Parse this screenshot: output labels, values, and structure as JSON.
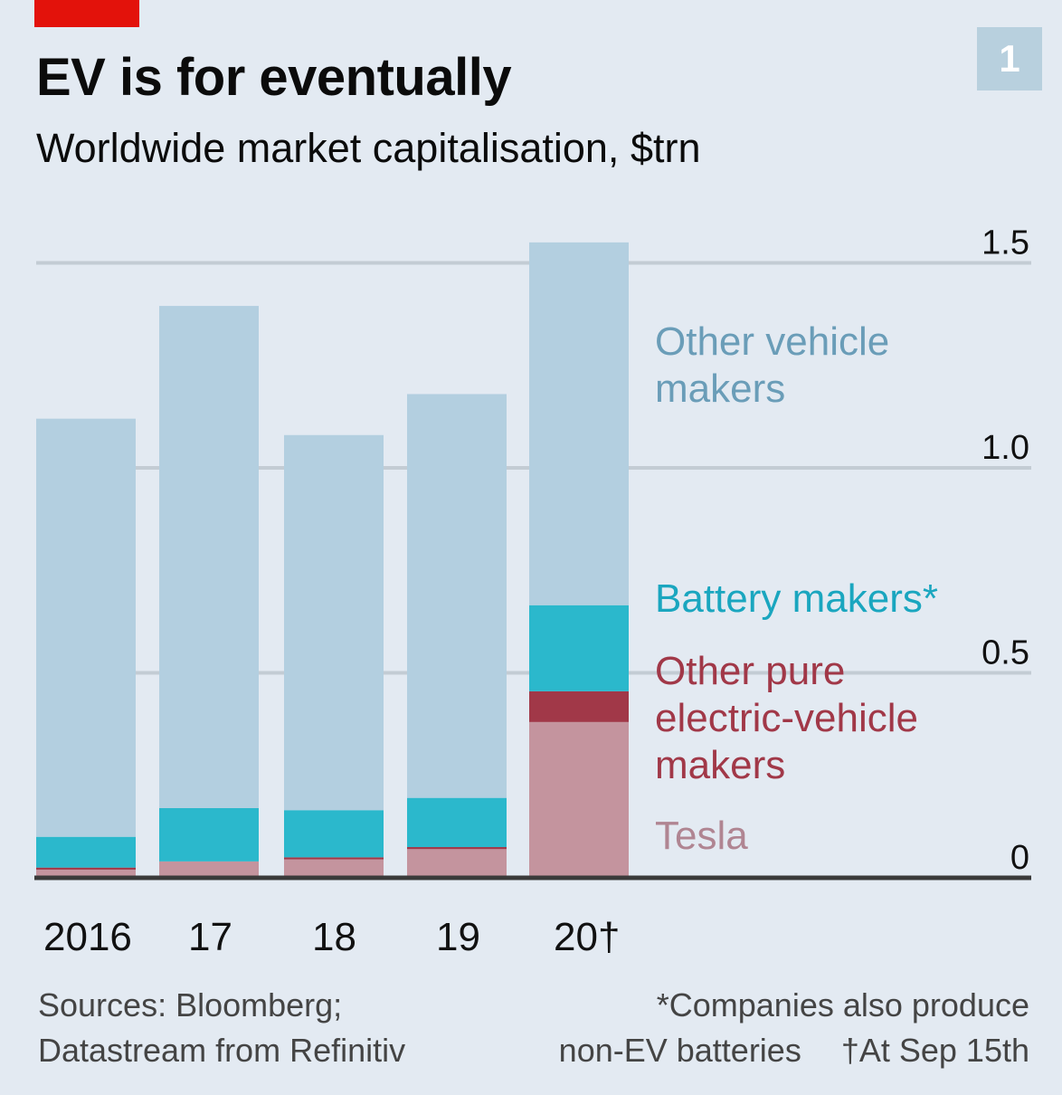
{
  "header": {
    "title": "EV is for eventually",
    "subtitle": "Worldwide market capitalisation, $trn",
    "chart_number": "1"
  },
  "footer": {
    "sources_line1": "Sources: Bloomberg;",
    "sources_line2": "Datastream from Refinitiv",
    "note_line1": "*Companies also produce",
    "note_line2": "non-EV batteries",
    "note_line2b": "†At Sep 15th"
  },
  "colors": {
    "background": "#e3eaf2",
    "brand_red": "#e3120b",
    "tesla": "#c4949e",
    "other_pure_ev": "#a13848",
    "battery": "#2bb8cc",
    "other_vehicle": "#b3cfe0"
  },
  "chart_data": {
    "type": "bar",
    "stacked": true,
    "title": "EV is for eventually",
    "subtitle": "Worldwide market capitalisation, $trn",
    "xlabel": "",
    "ylabel": "$trn",
    "categories": [
      "2016",
      "17",
      "18",
      "19",
      "20†"
    ],
    "ylim": [
      0,
      1.5
    ],
    "yticks": [
      0,
      0.5,
      1.0,
      1.5
    ],
    "ytick_labels": [
      "0",
      "0.5",
      "1.0",
      "1.5"
    ],
    "grid": true,
    "legend_position": "right-inline",
    "series": [
      {
        "name": "Tesla",
        "color": "#c4949e",
        "label_color": "#b08592",
        "values": [
          0.02,
          0.04,
          0.045,
          0.07,
          0.38
        ]
      },
      {
        "name": "Other pure electric-vehicle makers",
        "color": "#a13848",
        "label_color": "#a13848",
        "values": [
          0.005,
          0.0,
          0.005,
          0.005,
          0.075
        ]
      },
      {
        "name": "Battery makers*",
        "color": "#2bb8cc",
        "label_color": "#1aa6bf",
        "values": [
          0.075,
          0.13,
          0.115,
          0.12,
          0.21
        ]
      },
      {
        "name": "Other vehicle makers",
        "color": "#b3cfe0",
        "label_color": "#6a9db8",
        "values": [
          1.02,
          1.225,
          0.915,
          0.985,
          0.885
        ]
      }
    ],
    "legend_labels": [
      {
        "series": "Other vehicle makers",
        "lines": [
          "Other vehicle",
          "makers"
        ]
      },
      {
        "series": "Battery makers*",
        "lines": [
          "Battery makers*"
        ]
      },
      {
        "series": "Other pure electric-vehicle makers",
        "lines": [
          "Other pure",
          "electric-vehicle",
          "makers"
        ]
      },
      {
        "series": "Tesla",
        "lines": [
          "Tesla"
        ]
      }
    ]
  }
}
